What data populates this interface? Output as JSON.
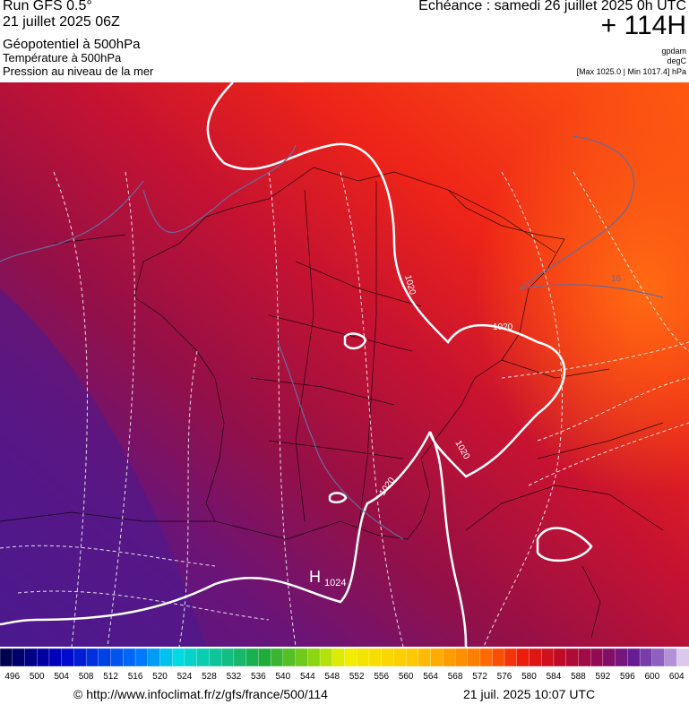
{
  "header": {
    "run": "Run GFS 0.5°",
    "date": "21 juillet 2025 06Z",
    "fields": [
      "Géopotentiel à 500hPa",
      "Température à 500hPa",
      "Pression au niveau de la mer"
    ]
  },
  "forecast": {
    "valid": "Echéance : samedi 26 juillet 2025 0h UTC",
    "step": "+ 114H",
    "units": [
      "gpdam",
      "degC",
      "[Max 1025.0 | Min 1017.4] hPa"
    ]
  },
  "map": {
    "labels": [
      "1020",
      "1020",
      "1020",
      "1020",
      "H",
      "1024",
      "16"
    ]
  },
  "colorbar": {
    "labels": [
      496,
      500,
      504,
      508,
      512,
      516,
      520,
      524,
      528,
      532,
      536,
      540,
      544,
      548,
      552,
      556,
      560,
      564,
      568,
      572,
      576,
      580,
      584,
      588,
      592,
      596,
      600,
      604
    ]
  },
  "footer": {
    "source": "© http://www.infoclimat.fr/z/gfs/france/500/114",
    "generated": "21 juil. 2025 10:07 UTC"
  }
}
